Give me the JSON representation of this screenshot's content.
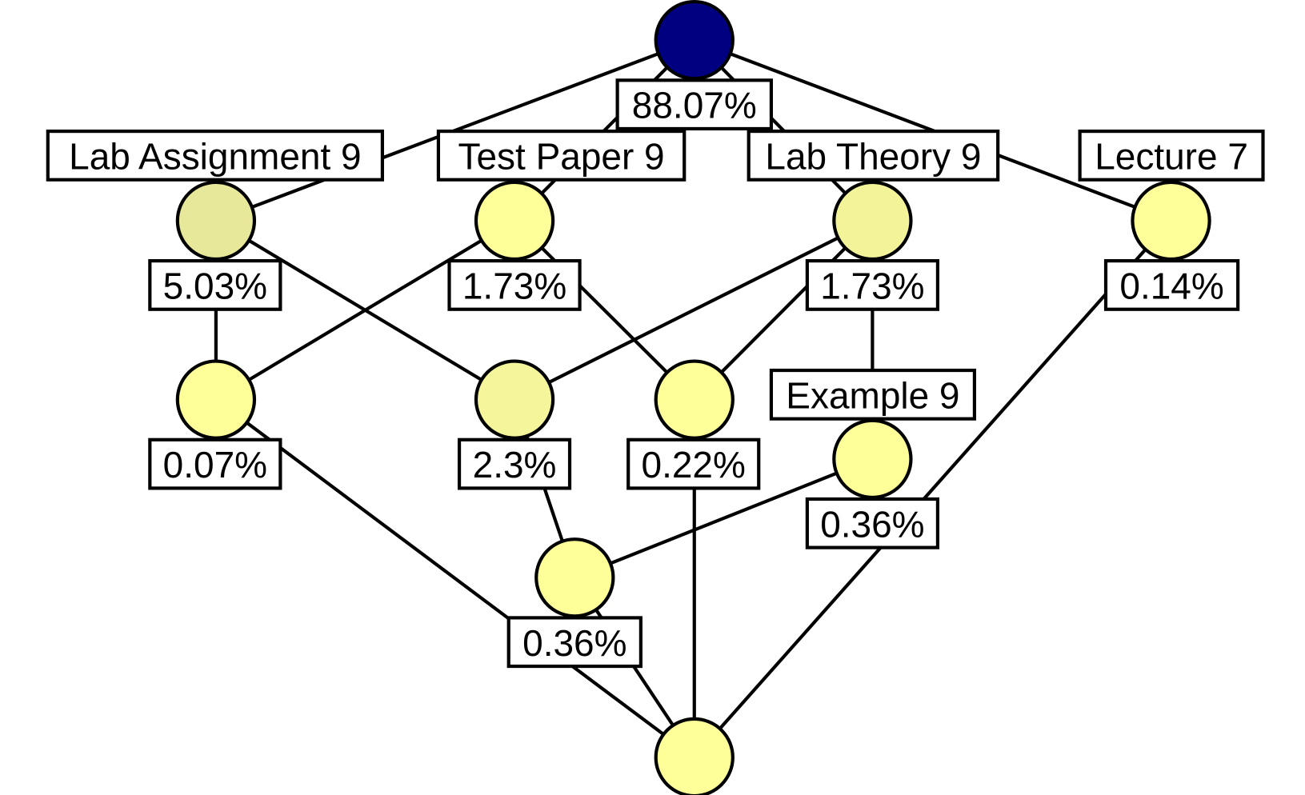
{
  "nodes": [
    {
      "percentage": "88.07%"
    },
    {
      "label": "Lab Assignment 9",
      "percentage": "5.03%"
    },
    {
      "label": "Test Paper 9",
      "percentage": "1.73%"
    },
    {
      "label": "Lab Theory 9",
      "percentage": "1.73%"
    },
    {
      "label": "Lecture 7",
      "percentage": "0.14%"
    },
    {
      "percentage": "0.07%"
    },
    {
      "percentage": "2.3%"
    },
    {
      "percentage": "0.22%"
    },
    {
      "label": "Example 9",
      "percentage": "0.36%"
    },
    {
      "percentage": "0.36%"
    }
  ]
}
